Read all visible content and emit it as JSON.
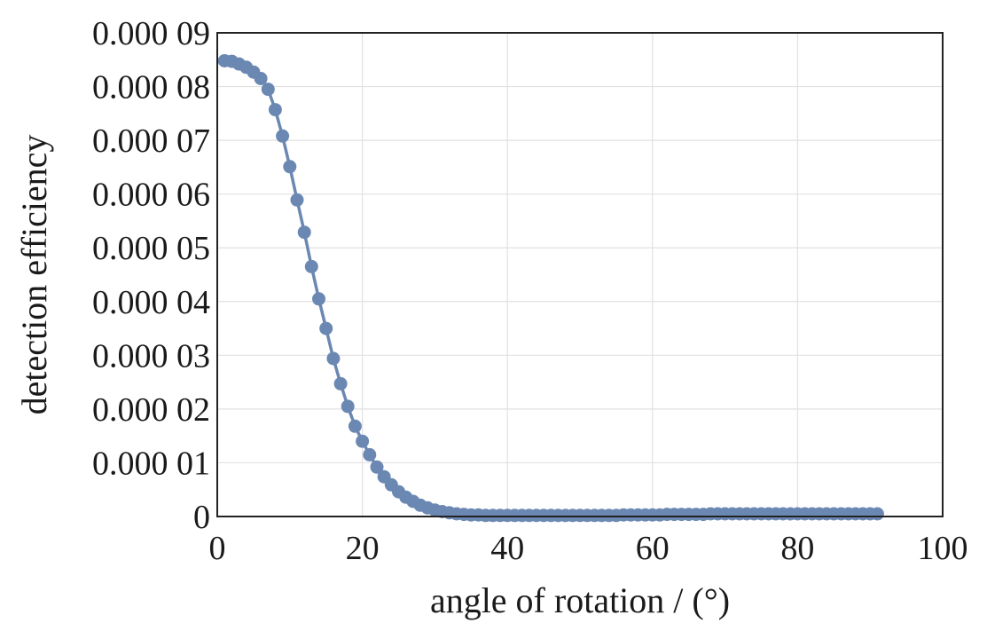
{
  "chart_data": {
    "type": "line",
    "xlabel": "angle of rotation / (°)",
    "ylabel": "detection efficiency",
    "xlim": [
      0,
      100
    ],
    "ylim": [
      0,
      9e-05
    ],
    "x_ticks": [
      0,
      20,
      40,
      60,
      80,
      100
    ],
    "x_tick_labels": [
      "0",
      "20",
      "40",
      "60",
      "80",
      "100"
    ],
    "y_ticks": [
      0,
      1e-05,
      2e-05,
      3e-05,
      4e-05,
      5e-05,
      6e-05,
      7e-05,
      8e-05,
      9e-05
    ],
    "y_tick_labels": [
      "0",
      "0.000 01",
      "0.000 02",
      "0.000 03",
      "0.000 04",
      "0.000 05",
      "0.000 06",
      "0.000 07",
      "0.000 08",
      "0.000 09"
    ],
    "grid": true,
    "series": [
      {
        "color": "#6b88b3",
        "x": [
          1,
          2,
          3,
          4,
          5,
          6,
          7,
          8,
          9,
          10,
          11,
          12,
          13,
          14,
          15,
          16,
          17,
          18,
          19,
          20,
          21,
          22,
          23,
          24,
          25,
          26,
          27,
          28,
          29,
          30,
          31,
          32,
          33,
          34,
          35,
          36,
          37,
          38,
          39,
          40,
          41,
          42,
          43,
          44,
          45,
          46,
          47,
          48,
          49,
          50,
          51,
          52,
          53,
          54,
          55,
          56,
          57,
          58,
          59,
          60,
          61,
          62,
          63,
          64,
          65,
          66,
          67,
          68,
          69,
          70,
          71,
          72,
          73,
          74,
          75,
          76,
          77,
          78,
          79,
          80,
          81,
          82,
          83,
          84,
          85,
          86,
          87,
          88,
          89,
          90,
          91
        ],
        "y": [
          8.48e-05,
          8.47e-05,
          8.42e-05,
          8.36e-05,
          8.27e-05,
          8.15e-05,
          7.95e-05,
          7.57e-05,
          7.08e-05,
          6.51e-05,
          5.89e-05,
          5.29e-05,
          4.65e-05,
          4.05e-05,
          3.5e-05,
          2.94e-05,
          2.47e-05,
          2.05e-05,
          1.68e-05,
          1.4e-05,
          1.15e-05,
          9.2e-06,
          7.4e-06,
          5.9e-06,
          4.6e-06,
          3.6e-06,
          2.8e-06,
          2.1e-06,
          1.6e-06,
          1.2e-06,
          9e-07,
          7e-07,
          5e-07,
          4e-07,
          3e-07,
          3e-07,
          2e-07,
          2e-07,
          2e-07,
          2e-07,
          2e-07,
          2e-07,
          2e-07,
          2e-07,
          2e-07,
          2e-07,
          2e-07,
          2e-07,
          2e-07,
          2e-07,
          2e-07,
          2e-07,
          2e-07,
          2e-07,
          2e-07,
          3e-07,
          3e-07,
          3e-07,
          3e-07,
          3e-07,
          3e-07,
          4e-07,
          4e-07,
          4e-07,
          4e-07,
          4e-07,
          4e-07,
          5e-07,
          5e-07,
          5e-07,
          5e-07,
          5e-07,
          5e-07,
          5e-07,
          5e-07,
          5e-07,
          5e-07,
          5e-07,
          5e-07,
          5e-07,
          5e-07,
          5e-07,
          5e-07,
          5e-07,
          5e-07,
          5e-07,
          5e-07,
          5e-07,
          5e-07,
          5e-07,
          5e-07
        ]
      }
    ]
  }
}
